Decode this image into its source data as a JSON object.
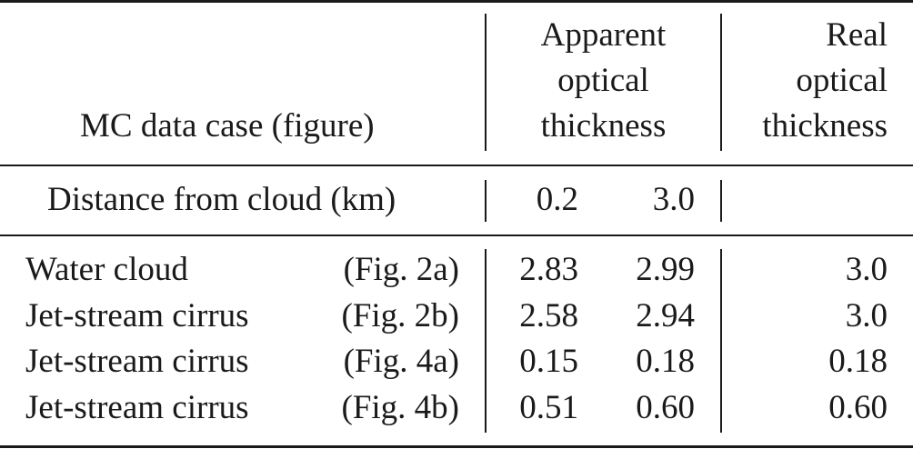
{
  "header": {
    "row_label": "MC data case (figure)",
    "apparent": [
      "Apparent",
      "optical",
      "thickness"
    ],
    "real": [
      "Real",
      "optical",
      "thickness"
    ]
  },
  "distance_row": {
    "label": "Distance from cloud (km)",
    "d1": "0.2",
    "d2": "3.0"
  },
  "rows": [
    {
      "name": "Water cloud",
      "figure": "(Fig. 2a)",
      "apparent_1": "2.83",
      "apparent_2": "2.99",
      "real": "3.0"
    },
    {
      "name": "Jet-stream cirrus",
      "figure": "(Fig. 2b)",
      "apparent_1": "2.58",
      "apparent_2": "2.94",
      "real": "3.0"
    },
    {
      "name": "Jet-stream cirrus",
      "figure": "(Fig. 4a)",
      "apparent_1": "0.15",
      "apparent_2": "0.18",
      "real": "0.18"
    },
    {
      "name": "Jet-stream cirrus",
      "figure": "(Fig. 4b)",
      "apparent_1": "0.51",
      "apparent_2": "0.60",
      "real": "0.60"
    }
  ]
}
